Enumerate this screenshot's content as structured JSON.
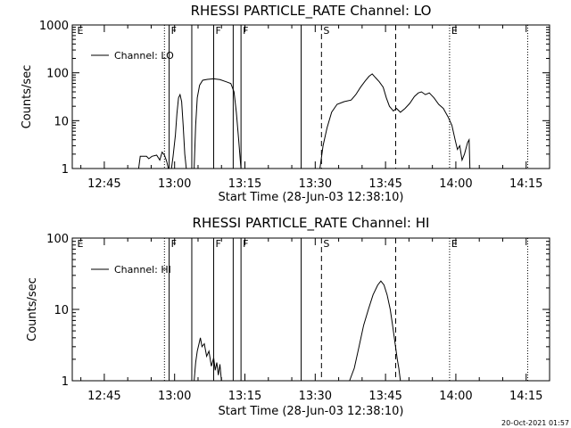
{
  "chart_data": [
    {
      "type": "line",
      "title": "RHESSI PARTICLE_RATE Channel: LO",
      "xlabel": "Start Time (28-Jun-03 12:38:10)",
      "ylabel": "Counts/sec",
      "scale": "log",
      "xlim": [
        "12:38:10",
        "14:20:00"
      ],
      "ylim": [
        1,
        1000
      ],
      "x_ticks": [
        "12:45",
        "13:00",
        "13:15",
        "13:30",
        "13:45",
        "14:00",
        "14:15"
      ],
      "y_ticks": [
        "1",
        "10",
        "100",
        "1000"
      ],
      "legend": "Channel: LO",
      "legend_position": "top-left",
      "flags": [
        {
          "time": "12:38:50",
          "label": "E",
          "style": "none"
        },
        {
          "time": "12:57:50",
          "label": "",
          "style": "dotted"
        },
        {
          "time": "12:58:50",
          "label": "F",
          "style": "solid"
        },
        {
          "time": "13:03:40",
          "label": "",
          "style": "solid"
        },
        {
          "time": "13:08:20",
          "label": "F",
          "style": "solid"
        },
        {
          "time": "13:12:30",
          "label": "",
          "style": "solid"
        },
        {
          "time": "13:14:10",
          "label": "F",
          "style": "solid"
        },
        {
          "time": "13:27:00",
          "label": "",
          "style": "solid"
        },
        {
          "time": "13:31:20",
          "label": "S",
          "style": "dashed"
        },
        {
          "time": "13:47:10",
          "label": "",
          "style": "dashed"
        },
        {
          "time": "13:58:40",
          "label": "E",
          "style": "dotted"
        },
        {
          "time": "14:15:20",
          "label": "",
          "style": "dotted"
        }
      ],
      "series": [
        {
          "name": "Channel: LO",
          "segments": [
            [
              [
                "12:52:20",
                1
              ],
              [
                "12:52:40",
                1.8
              ],
              [
                "12:54:00",
                1.8
              ],
              [
                "12:54:30",
                1.6
              ],
              [
                "12:55:10",
                1.8
              ],
              [
                "12:56:10",
                1.9
              ],
              [
                "12:56:50",
                1.5
              ],
              [
                "12:57:20",
                2.2
              ],
              [
                "12:57:50",
                1.9
              ],
              [
                "12:58:20",
                1.4
              ],
              [
                "12:58:40",
                1
              ]
            ],
            [
              [
                "12:59:20",
                1
              ],
              [
                "12:59:40",
                1.8
              ],
              [
                "13:00:10",
                5
              ],
              [
                "13:00:30",
                14
              ],
              [
                "13:00:50",
                30
              ],
              [
                "13:01:10",
                35
              ],
              [
                "13:01:30",
                25
              ],
              [
                "13:01:50",
                8
              ],
              [
                "13:02:10",
                2
              ],
              [
                "13:02:30",
                1
              ]
            ],
            [
              [
                "13:04:10",
                1
              ],
              [
                "13:04:30",
                8
              ],
              [
                "13:04:50",
                30
              ],
              [
                "13:05:20",
                55
              ],
              [
                "13:06:00",
                70
              ],
              [
                "13:07:00",
                73
              ],
              [
                "13:08:20",
                75
              ],
              [
                "13:09:40",
                72
              ],
              [
                "13:11:00",
                65
              ],
              [
                "13:12:00",
                60
              ],
              [
                "13:12:40",
                40
              ],
              [
                "13:13:10",
                15
              ],
              [
                "13:13:40",
                4
              ],
              [
                "13:14:00",
                1.5
              ],
              [
                "13:14:10",
                1
              ]
            ],
            [
              [
                "13:31:00",
                1
              ],
              [
                "13:31:40",
                3
              ],
              [
                "13:32:30",
                7
              ],
              [
                "13:33:30",
                15
              ],
              [
                "13:34:40",
                22
              ],
              [
                "13:36:10",
                25
              ],
              [
                "13:37:40",
                27
              ],
              [
                "13:38:40",
                35
              ],
              [
                "13:39:40",
                50
              ],
              [
                "13:40:40",
                68
              ],
              [
                "13:41:30",
                85
              ],
              [
                "13:42:10",
                95
              ],
              [
                "13:42:50",
                80
              ],
              [
                "13:43:40",
                65
              ],
              [
                "13:44:30",
                50
              ],
              [
                "13:45:10",
                30
              ],
              [
                "13:45:50",
                20
              ],
              [
                "13:46:40",
                16
              ],
              [
                "13:47:20",
                18
              ],
              [
                "13:48:10",
                15
              ],
              [
                "13:49:10",
                18
              ],
              [
                "13:50:10",
                23
              ],
              [
                "13:51:10",
                32
              ],
              [
                "13:52:00",
                38
              ],
              [
                "13:52:40",
                40
              ],
              [
                "13:53:30",
                35
              ],
              [
                "13:54:20",
                38
              ],
              [
                "13:55:20",
                30
              ],
              [
                "13:56:20",
                22
              ],
              [
                "13:57:20",
                18
              ],
              [
                "13:58:20",
                12
              ],
              [
                "13:59:10",
                8
              ],
              [
                "13:59:50",
                4
              ],
              [
                "14:00:20",
                2.5
              ],
              [
                "14:00:50",
                3
              ],
              [
                "14:01:20",
                1.5
              ],
              [
                "14:01:50",
                2
              ],
              [
                "14:02:30",
                3.5
              ],
              [
                "14:02:50",
                4
              ],
              [
                "14:03:00",
                1
              ]
            ]
          ]
        }
      ]
    },
    {
      "type": "line",
      "title": "RHESSI PARTICLE_RATE Channel: HI",
      "xlabel": "Start Time (28-Jun-03 12:38:10)",
      "ylabel": "Counts/sec",
      "scale": "log",
      "xlim": [
        "12:38:10",
        "14:20:00"
      ],
      "ylim": [
        1,
        100
      ],
      "x_ticks": [
        "12:45",
        "13:00",
        "13:15",
        "13:30",
        "13:45",
        "14:00",
        "14:15"
      ],
      "y_ticks": [
        "1",
        "10",
        "100"
      ],
      "legend": "Channel: HI",
      "legend_position": "top-left",
      "flags": [
        {
          "time": "12:38:50",
          "label": "E",
          "style": "none"
        },
        {
          "time": "12:57:50",
          "label": "",
          "style": "dotted"
        },
        {
          "time": "12:58:50",
          "label": "F",
          "style": "solid"
        },
        {
          "time": "13:03:40",
          "label": "",
          "style": "solid"
        },
        {
          "time": "13:08:20",
          "label": "F",
          "style": "solid"
        },
        {
          "time": "13:12:30",
          "label": "",
          "style": "solid"
        },
        {
          "time": "13:14:10",
          "label": "F",
          "style": "solid"
        },
        {
          "time": "13:27:00",
          "label": "",
          "style": "solid"
        },
        {
          "time": "13:31:20",
          "label": "S",
          "style": "dashed"
        },
        {
          "time": "13:47:10",
          "label": "",
          "style": "dashed"
        },
        {
          "time": "13:58:40",
          "label": "E",
          "style": "dotted"
        },
        {
          "time": "14:15:20",
          "label": "",
          "style": "dotted"
        }
      ],
      "series": [
        {
          "name": "Channel: HI",
          "segments": [
            [
              [
                "13:04:10",
                1
              ],
              [
                "13:04:30",
                1.8
              ],
              [
                "13:04:50",
                2.6
              ],
              [
                "13:05:10",
                3.2
              ],
              [
                "13:05:30",
                4
              ],
              [
                "13:05:50",
                3
              ],
              [
                "13:06:20",
                3.3
              ],
              [
                "13:06:50",
                2.2
              ],
              [
                "13:07:20",
                2.6
              ],
              [
                "13:07:50",
                1.6
              ],
              [
                "13:08:20",
                2.1
              ],
              [
                "13:08:40",
                1.4
              ],
              [
                "13:09:00",
                1.8
              ],
              [
                "13:09:20",
                1.2
              ],
              [
                "13:09:40",
                1.7
              ],
              [
                "13:10:00",
                1
              ]
            ],
            [
              [
                "13:37:20",
                1
              ],
              [
                "13:38:20",
                1.5
              ],
              [
                "13:39:20",
                3
              ],
              [
                "13:40:20",
                6
              ],
              [
                "13:41:20",
                10
              ],
              [
                "13:42:20",
                16
              ],
              [
                "13:43:20",
                22
              ],
              [
                "13:44:00",
                25
              ],
              [
                "13:44:40",
                22
              ],
              [
                "13:45:20",
                16
              ],
              [
                "13:46:00",
                10
              ],
              [
                "13:46:30",
                6
              ],
              [
                "13:47:00",
                3.5
              ],
              [
                "13:47:30",
                2
              ],
              [
                "13:47:50",
                1.5
              ],
              [
                "13:48:10",
                1
              ]
            ]
          ]
        }
      ]
    }
  ],
  "timestamp": "20-Oct-2021 01:57"
}
